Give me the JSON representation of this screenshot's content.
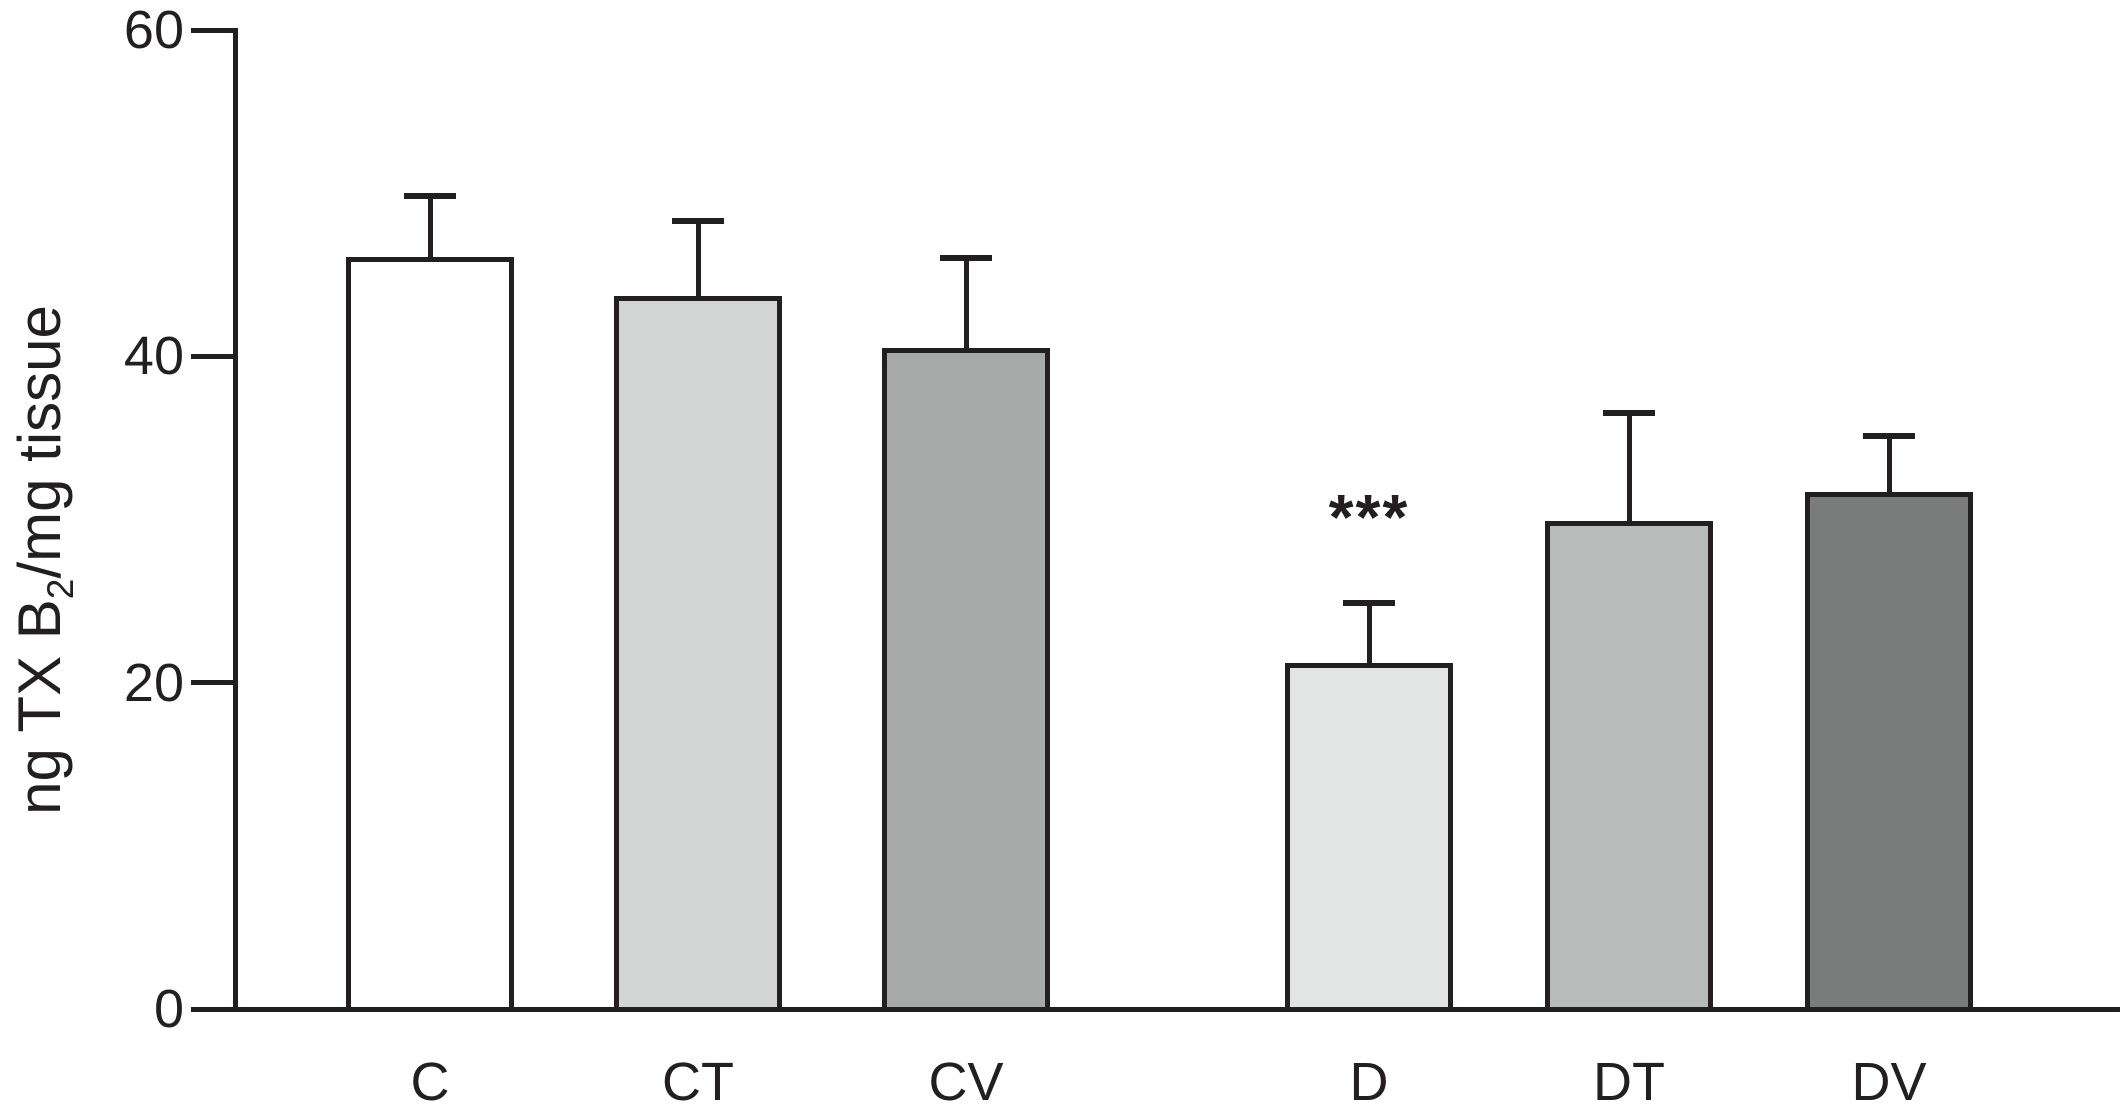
{
  "chart_data": {
    "type": "bar",
    "title": "",
    "xlabel": "",
    "ylabel": "ng TX B2/mg tissue",
    "ylabel_parts": {
      "pre": "ng TX B",
      "sub": "2",
      "post": "/mg tissue"
    },
    "categories": [
      "C",
      "CT",
      "CV",
      "D",
      "DT",
      "DV"
    ],
    "values": [
      46.1,
      43.7,
      40.5,
      21.2,
      29.9,
      31.7
    ],
    "errors_upper": [
      3.7,
      4.6,
      5.5,
      3.7,
      6.6,
      3.4
    ],
    "bar_colors": [
      "#ffffff",
      "#d3d5d4",
      "#a8aaa9",
      "#e3e5e4",
      "#b9bbba",
      "#7a7c7b"
    ],
    "stroke_color": "#231f20",
    "background_color": "#ffffff",
    "ylim": [
      0,
      60
    ],
    "yticks": [
      0,
      20,
      40,
      60
    ],
    "ytick_labels": [
      "0",
      "20",
      "40",
      "60"
    ],
    "grid": false,
    "legend": "none",
    "error_bar_style": "upper-only-with-cap",
    "annotations": [
      {
        "category": "D",
        "text": "***"
      }
    ]
  }
}
